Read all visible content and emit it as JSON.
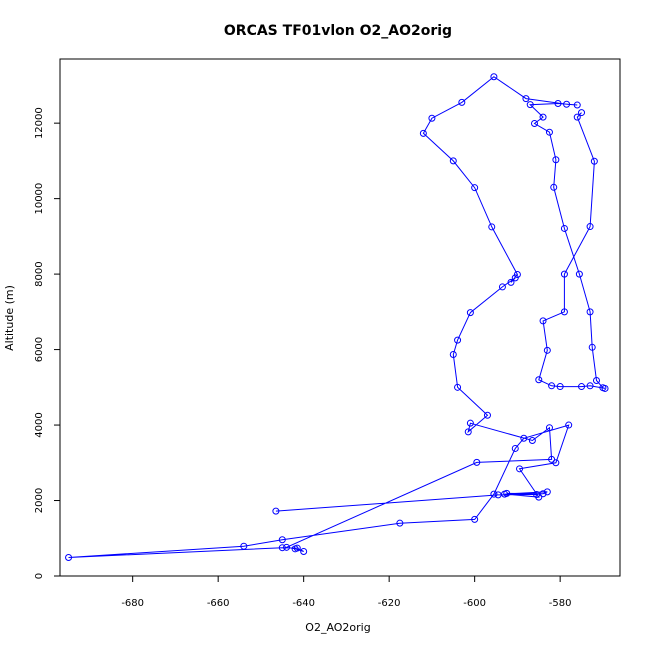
{
  "chart_data": {
    "type": "line",
    "title": "ORCAS TF01vlon O2_AO2orig",
    "xlabel": "O2_AO2orig",
    "ylabel": "Altitude (m)",
    "xlim": [
      -697,
      -566
    ],
    "ylim": [
      0,
      13700
    ],
    "x_ticks": [
      -680,
      -660,
      -640,
      -620,
      -600,
      -580
    ],
    "y_ticks": [
      0,
      2000,
      4000,
      6000,
      8000,
      10000,
      12000
    ],
    "grid": false,
    "legend": "none",
    "line_color": "#0000ff",
    "marker": "open-circle",
    "series": [
      {
        "x": [
          -646.5,
          -594.5,
          -585.5,
          -592.5,
          -584,
          -583,
          -593,
          -585,
          -589.5,
          -581,
          -578,
          -588.5,
          -590.5,
          -595.5,
          -600,
          -617.5,
          -645,
          -654,
          -695,
          -645,
          -641.5,
          -640,
          -642,
          -644,
          -599.5,
          -582,
          -582.5,
          -586.5,
          -601,
          -601.5,
          -597,
          -604,
          -605,
          -604,
          -601,
          -593.5,
          -590.5,
          -591.5,
          -590,
          -596,
          -600,
          -605,
          -612,
          -610,
          -603,
          -595.5,
          -588,
          -578.5,
          -576,
          -580.5,
          -587,
          -584,
          -586,
          -582.5,
          -581,
          -581.5,
          -579,
          -575.5,
          -573,
          -572.5,
          -571.5,
          -570,
          -569.5,
          -573,
          -575,
          -580,
          -582,
          -585,
          -583,
          -584,
          -579,
          -579,
          -573,
          -572,
          -576,
          -575
        ],
        "y": [
          1720,
          2150,
          2160,
          2190,
          2180,
          2230,
          2170,
          2090,
          2840,
          3000,
          4000,
          3650,
          3380,
          2170,
          1500,
          1400,
          960,
          790,
          490,
          750,
          740,
          650,
          720,
          760,
          3010,
          3090,
          3930,
          3590,
          4050,
          3820,
          4260,
          5000,
          5870,
          6250,
          6980,
          7660,
          7900,
          7780,
          7990,
          9250,
          10290,
          11000,
          11730,
          12130,
          12550,
          13230,
          12650,
          12500,
          12480,
          12520,
          12490,
          12160,
          11990,
          11760,
          11030,
          10300,
          9210,
          8000,
          7000,
          6060,
          5180,
          4990,
          4970,
          5040,
          5020,
          5020,
          5040,
          5200,
          5980,
          6760,
          7000,
          8000,
          9260,
          10990,
          12160,
          12280
        ]
      }
    ]
  }
}
